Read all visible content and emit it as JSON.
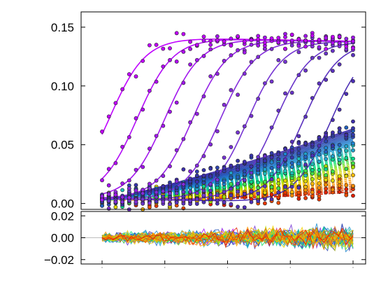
{
  "chart_data": [
    {
      "panel": "main",
      "type": "scatter",
      "overlay": "fitted curves",
      "xlabel": "",
      "ylabel": "",
      "ylim": [
        -0.005,
        0.163
      ],
      "y_ticks": [
        0.15,
        0.1,
        0.05,
        0.0
      ],
      "y_tick_labels": [
        "0.15",
        "0.10",
        "0.05",
        "0.00"
      ],
      "x_tick_count": 5,
      "x_tick_labels": [],
      "grid": false,
      "legend": "none",
      "series_count": 48,
      "color_scale": [
        "#c000ff",
        "#7a34d6",
        "#3a2fa8",
        "#2456b8",
        "#1f8fd6",
        "#22b8c0",
        "#00e07a",
        "#a4e000",
        "#ffd000",
        "#ff8a00",
        "#e02000"
      ],
      "family": {
        "description": "sigmoidal rise curves; early series (violet) rise fastest to a plateau near 0.138, later series rise progressively later; late series (green to red) stay low and increase slowly",
        "plateau": 0.138,
        "baseline_start": 0.0,
        "rise_point_fractions_of_x_range": [
          0.03,
          0.14,
          0.25,
          0.36,
          0.47,
          0.58,
          0.69,
          0.8,
          0.91
        ],
        "final_values_of_slow_series": [
          0.06,
          0.055,
          0.05,
          0.045,
          0.04,
          0.035,
          0.03,
          0.025,
          0.02,
          0.015
        ]
      }
    },
    {
      "panel": "residuals",
      "type": "line",
      "xlabel": "",
      "ylabel": "",
      "ylim": [
        -0.024,
        0.024
      ],
      "y_ticks": [
        0.02,
        0.0,
        -0.02
      ],
      "y_tick_labels": [
        "0.02",
        "0.00",
        "−0.02"
      ],
      "zero_line": true,
      "grid": false,
      "legend": "none",
      "series_count": 48,
      "noise_amplitude": 0.01
    }
  ]
}
